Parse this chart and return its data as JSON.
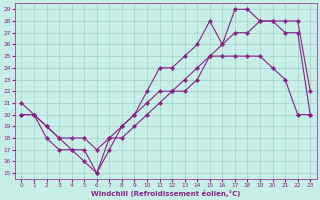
{
  "xlabel": "Windchill (Refroidissement éolien,°C)",
  "background_color": "#c8eee8",
  "grid_color": "#a0d0c8",
  "line_color": "#882288",
  "xlim": [
    -0.5,
    23.5
  ],
  "ylim": [
    14.5,
    29.5
  ],
  "xticks": [
    0,
    1,
    2,
    3,
    4,
    5,
    6,
    7,
    8,
    9,
    10,
    11,
    12,
    13,
    14,
    15,
    16,
    17,
    18,
    19,
    20,
    21,
    22,
    23
  ],
  "yticks": [
    15,
    16,
    17,
    18,
    19,
    20,
    21,
    22,
    23,
    24,
    25,
    26,
    27,
    28,
    29
  ],
  "series1_x": [
    0,
    1,
    2,
    3,
    4,
    5,
    6,
    7,
    8,
    9,
    10,
    11,
    12,
    13,
    14,
    15,
    16,
    17,
    18,
    19,
    20,
    21,
    22,
    23
  ],
  "series1_y": [
    21,
    20,
    19,
    18,
    17,
    17,
    15,
    17,
    19,
    20,
    21,
    22,
    22,
    22,
    23,
    25,
    25,
    25,
    25,
    25,
    24,
    23,
    20,
    20
  ],
  "series2_x": [
    0,
    1,
    2,
    3,
    4,
    5,
    6,
    7,
    8,
    9,
    10,
    11,
    12,
    13,
    14,
    15,
    16,
    17,
    18,
    19,
    20,
    21,
    22,
    23
  ],
  "series2_y": [
    20,
    20,
    18,
    17,
    17,
    16,
    15,
    18,
    19,
    20,
    22,
    24,
    24,
    25,
    26,
    28,
    26,
    29,
    29,
    28,
    28,
    27,
    27,
    20
  ],
  "series3_x": [
    0,
    1,
    2,
    3,
    4,
    5,
    6,
    7,
    8,
    9,
    10,
    11,
    12,
    13,
    14,
    15,
    16,
    17,
    18,
    19,
    20,
    21,
    22,
    23
  ],
  "series3_y": [
    20,
    20,
    19,
    18,
    18,
    18,
    17,
    18,
    18,
    19,
    20,
    21,
    22,
    23,
    24,
    25,
    26,
    27,
    27,
    28,
    28,
    28,
    28,
    22
  ]
}
